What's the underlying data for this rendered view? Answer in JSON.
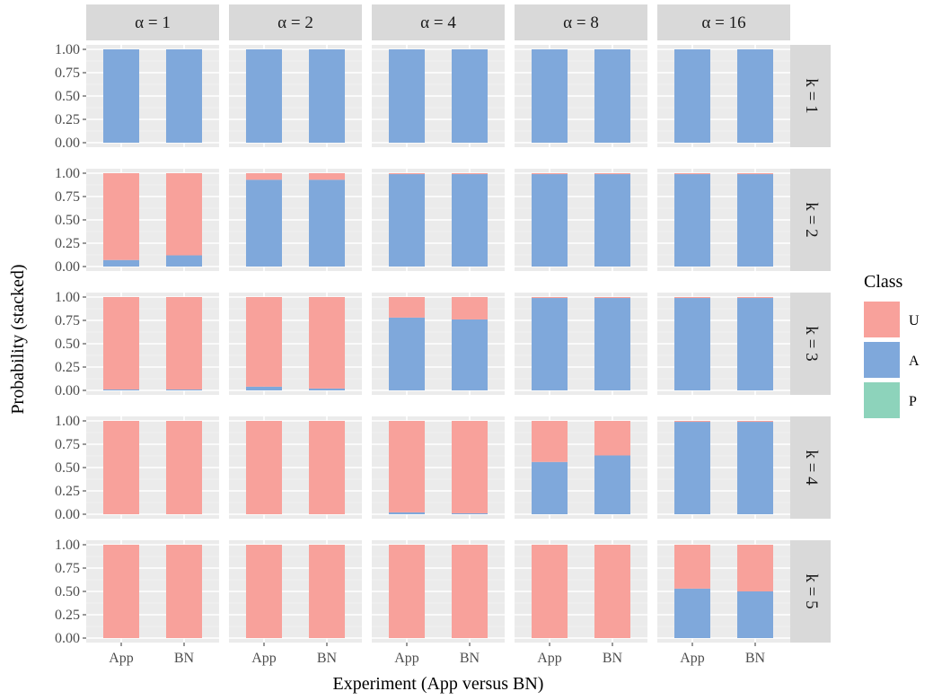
{
  "chart_data": {
    "type": "bar",
    "stacked": true,
    "xlabel": "Experiment (App versus BN)",
    "ylabel": "Probability (stacked)",
    "ylim": [
      0,
      1
    ],
    "y_ticks": [
      "0.00",
      "0.25",
      "0.50",
      "0.75",
      "1.00"
    ],
    "categories": [
      "App",
      "BN"
    ],
    "col_facets": [
      "α = 1",
      "α = 2",
      "α = 4",
      "α = 8",
      "α = 16"
    ],
    "row_facets": [
      "k = 1",
      "k = 2",
      "k = 3",
      "k = 4",
      "k = 5"
    ],
    "legend": {
      "title": "Class",
      "position": "right",
      "entries": [
        {
          "label": "U",
          "color": "#F8A19B"
        },
        {
          "label": "A",
          "color": "#7FA8DB"
        },
        {
          "label": "P",
          "color": "#8DD3BB"
        }
      ]
    },
    "stack_order_bottom_to_top": [
      "P",
      "A",
      "U"
    ],
    "panels": [
      {
        "row": 0,
        "col": 0,
        "bars": [
          {
            "x": "App",
            "P": 0,
            "A": 1.0,
            "U": 0
          },
          {
            "x": "BN",
            "P": 0,
            "A": 1.0,
            "U": 0
          }
        ]
      },
      {
        "row": 0,
        "col": 1,
        "bars": [
          {
            "x": "App",
            "P": 0,
            "A": 1.0,
            "U": 0
          },
          {
            "x": "BN",
            "P": 0,
            "A": 1.0,
            "U": 0
          }
        ]
      },
      {
        "row": 0,
        "col": 2,
        "bars": [
          {
            "x": "App",
            "P": 0,
            "A": 1.0,
            "U": 0
          },
          {
            "x": "BN",
            "P": 0,
            "A": 1.0,
            "U": 0
          }
        ]
      },
      {
        "row": 0,
        "col": 3,
        "bars": [
          {
            "x": "App",
            "P": 0,
            "A": 1.0,
            "U": 0
          },
          {
            "x": "BN",
            "P": 0,
            "A": 1.0,
            "U": 0
          }
        ]
      },
      {
        "row": 0,
        "col": 4,
        "bars": [
          {
            "x": "App",
            "P": 0,
            "A": 1.0,
            "U": 0
          },
          {
            "x": "BN",
            "P": 0,
            "A": 1.0,
            "U": 0
          }
        ]
      },
      {
        "row": 1,
        "col": 0,
        "bars": [
          {
            "x": "App",
            "P": 0,
            "A": 0.07,
            "U": 0.93
          },
          {
            "x": "BN",
            "P": 0,
            "A": 0.12,
            "U": 0.88
          }
        ]
      },
      {
        "row": 1,
        "col": 1,
        "bars": [
          {
            "x": "App",
            "P": 0,
            "A": 0.93,
            "U": 0.07
          },
          {
            "x": "BN",
            "P": 0,
            "A": 0.93,
            "U": 0.07
          }
        ]
      },
      {
        "row": 1,
        "col": 2,
        "bars": [
          {
            "x": "App",
            "P": 0,
            "A": 0.99,
            "U": 0.01
          },
          {
            "x": "BN",
            "P": 0,
            "A": 0.99,
            "U": 0.01
          }
        ]
      },
      {
        "row": 1,
        "col": 3,
        "bars": [
          {
            "x": "App",
            "P": 0,
            "A": 0.99,
            "U": 0.01
          },
          {
            "x": "BN",
            "P": 0,
            "A": 0.99,
            "U": 0.01
          }
        ]
      },
      {
        "row": 1,
        "col": 4,
        "bars": [
          {
            "x": "App",
            "P": 0,
            "A": 0.99,
            "U": 0.01
          },
          {
            "x": "BN",
            "P": 0,
            "A": 0.99,
            "U": 0.01
          }
        ]
      },
      {
        "row": 2,
        "col": 0,
        "bars": [
          {
            "x": "App",
            "P": 0,
            "A": 0.01,
            "U": 0.99
          },
          {
            "x": "BN",
            "P": 0,
            "A": 0.01,
            "U": 0.99
          }
        ]
      },
      {
        "row": 2,
        "col": 1,
        "bars": [
          {
            "x": "App",
            "P": 0,
            "A": 0.04,
            "U": 0.96
          },
          {
            "x": "BN",
            "P": 0,
            "A": 0.02,
            "U": 0.98
          }
        ]
      },
      {
        "row": 2,
        "col": 2,
        "bars": [
          {
            "x": "App",
            "P": 0,
            "A": 0.78,
            "U": 0.22
          },
          {
            "x": "BN",
            "P": 0,
            "A": 0.76,
            "U": 0.24
          }
        ]
      },
      {
        "row": 2,
        "col": 3,
        "bars": [
          {
            "x": "App",
            "P": 0,
            "A": 0.99,
            "U": 0.01
          },
          {
            "x": "BN",
            "P": 0,
            "A": 0.99,
            "U": 0.01
          }
        ]
      },
      {
        "row": 2,
        "col": 4,
        "bars": [
          {
            "x": "App",
            "P": 0,
            "A": 0.99,
            "U": 0.01
          },
          {
            "x": "BN",
            "P": 0,
            "A": 0.99,
            "U": 0.01
          }
        ]
      },
      {
        "row": 3,
        "col": 0,
        "bars": [
          {
            "x": "App",
            "P": 0,
            "A": 0.0,
            "U": 1.0
          },
          {
            "x": "BN",
            "P": 0,
            "A": 0.0,
            "U": 1.0
          }
        ]
      },
      {
        "row": 3,
        "col": 1,
        "bars": [
          {
            "x": "App",
            "P": 0,
            "A": 0.0,
            "U": 1.0
          },
          {
            "x": "BN",
            "P": 0,
            "A": 0.0,
            "U": 1.0
          }
        ]
      },
      {
        "row": 3,
        "col": 2,
        "bars": [
          {
            "x": "App",
            "P": 0,
            "A": 0.02,
            "U": 0.98
          },
          {
            "x": "BN",
            "P": 0,
            "A": 0.01,
            "U": 0.99
          }
        ]
      },
      {
        "row": 3,
        "col": 3,
        "bars": [
          {
            "x": "App",
            "P": 0,
            "A": 0.56,
            "U": 0.44
          },
          {
            "x": "BN",
            "P": 0,
            "A": 0.63,
            "U": 0.37
          }
        ]
      },
      {
        "row": 3,
        "col": 4,
        "bars": [
          {
            "x": "App",
            "P": 0,
            "A": 0.99,
            "U": 0.01
          },
          {
            "x": "BN",
            "P": 0,
            "A": 0.99,
            "U": 0.01
          }
        ]
      },
      {
        "row": 4,
        "col": 0,
        "bars": [
          {
            "x": "App",
            "P": 0,
            "A": 0.0,
            "U": 1.0
          },
          {
            "x": "BN",
            "P": 0,
            "A": 0.0,
            "U": 1.0
          }
        ]
      },
      {
        "row": 4,
        "col": 1,
        "bars": [
          {
            "x": "App",
            "P": 0,
            "A": 0.0,
            "U": 1.0
          },
          {
            "x": "BN",
            "P": 0,
            "A": 0.0,
            "U": 1.0
          }
        ]
      },
      {
        "row": 4,
        "col": 2,
        "bars": [
          {
            "x": "App",
            "P": 0,
            "A": 0.0,
            "U": 1.0
          },
          {
            "x": "BN",
            "P": 0,
            "A": 0.0,
            "U": 1.0
          }
        ]
      },
      {
        "row": 4,
        "col": 3,
        "bars": [
          {
            "x": "App",
            "P": 0,
            "A": 0.0,
            "U": 1.0
          },
          {
            "x": "BN",
            "P": 0,
            "A": 0.0,
            "U": 1.0
          }
        ]
      },
      {
        "row": 4,
        "col": 4,
        "bars": [
          {
            "x": "App",
            "P": 0,
            "A": 0.53,
            "U": 0.47
          },
          {
            "x": "BN",
            "P": 0,
            "A": 0.5,
            "U": 0.5
          }
        ]
      }
    ]
  }
}
